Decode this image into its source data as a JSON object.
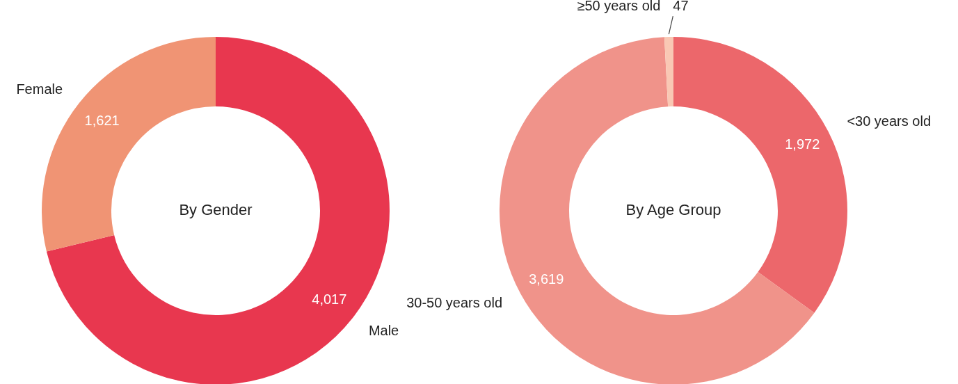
{
  "chart_data": [
    {
      "type": "donut",
      "title": "By Gender",
      "categories": [
        "Male",
        "Female"
      ],
      "values": [
        4017,
        1621
      ],
      "value_labels": [
        "4,017",
        "1,621"
      ],
      "colors": [
        "#e8374f",
        "#f09474"
      ],
      "legend": false
    },
    {
      "type": "donut",
      "title": "By Age Group",
      "categories": [
        "<30 years old",
        "30-50 years old",
        "≥50 years old"
      ],
      "values": [
        1972,
        3619,
        47
      ],
      "value_labels": [
        "1,972",
        "3,619",
        "47"
      ],
      "colors": [
        "#ec676b",
        "#f0938a",
        "#f9c8b4"
      ],
      "legend": false
    }
  ]
}
